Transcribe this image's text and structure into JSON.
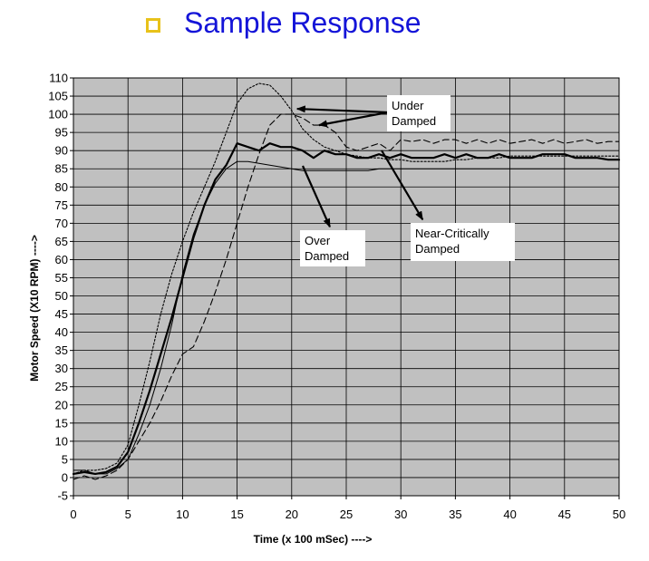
{
  "slide": {
    "title": "Sample Response",
    "bullet_icon": "hollow-square-bullet-icon",
    "bullet_color": "#E8C21A",
    "title_color": "#1414D8"
  },
  "chart_data": {
    "type": "line",
    "title": "",
    "xlabel": "Time (x 100 mSec) ---->",
    "ylabel": "Motor Speed (X10 RPM) ---->",
    "xlim": [
      0,
      50
    ],
    "ylim": [
      -5,
      110
    ],
    "xticks": [
      "0",
      "5",
      "10",
      "15",
      "20",
      "25",
      "30",
      "35",
      "40",
      "45",
      "50"
    ],
    "yticks": [
      "-5",
      "0",
      "5",
      "10",
      "15",
      "20",
      "25",
      "30",
      "35",
      "40",
      "45",
      "50",
      "55",
      "60",
      "65",
      "70",
      "75",
      "80",
      "85",
      "90",
      "95",
      "100",
      "105",
      "110"
    ],
    "grid": true,
    "plot_background": "#C0C0C0",
    "series": [
      {
        "name": "Under Damped",
        "style": "dotted",
        "x": [
          0,
          1,
          2,
          3,
          4,
          5,
          6,
          7,
          8,
          9,
          10,
          11,
          12,
          13,
          14,
          15,
          16,
          17,
          18,
          19,
          20,
          21,
          22,
          23,
          24,
          25,
          26,
          27,
          28,
          29,
          30,
          31,
          32,
          33,
          34,
          35,
          36,
          37,
          38,
          39,
          40,
          41,
          42,
          43,
          44,
          45,
          46,
          47,
          48,
          49,
          50
        ],
        "y": [
          1,
          2,
          2,
          2.5,
          4,
          9,
          20,
          32,
          45,
          56,
          65,
          73,
          80,
          87,
          95,
          103,
          107,
          108.5,
          108,
          105,
          101,
          96,
          93,
          91,
          90,
          89,
          88.5,
          88,
          88,
          87.5,
          87.5,
          87,
          87,
          87,
          87,
          87.5,
          87.5,
          88,
          88,
          88,
          88.5,
          88.5,
          88.5,
          88.5,
          88.5,
          88.5,
          88.5,
          88.5,
          88.5,
          88.5,
          88.5
        ]
      },
      {
        "name": "Under Damped",
        "style": "dashed",
        "x": [
          0,
          1,
          2,
          3,
          4,
          5,
          6,
          7,
          8,
          9,
          10,
          11,
          12,
          13,
          14,
          15,
          16,
          17,
          18,
          19,
          20,
          21,
          22,
          23,
          24,
          25,
          26,
          27,
          28,
          29,
          30,
          31,
          32,
          33,
          34,
          35,
          36,
          37,
          38,
          39,
          40,
          41,
          42,
          43,
          44,
          45,
          46,
          47,
          48,
          49,
          50
        ],
        "y": [
          -0.5,
          0.5,
          -0.5,
          0.5,
          2,
          5,
          10,
          15,
          21,
          28,
          34,
          36,
          43,
          51,
          60,
          70,
          80,
          89,
          97,
          100,
          100,
          99,
          97,
          97,
          95,
          91,
          90,
          91,
          92,
          90,
          93,
          92.5,
          93,
          92,
          93,
          93,
          92,
          93,
          92,
          93,
          92,
          92.5,
          93,
          92,
          93,
          92,
          92.5,
          93,
          92,
          92.5,
          92.5
        ]
      },
      {
        "name": "Near-Critically Damped",
        "style": "solid-thick",
        "x": [
          0,
          1,
          2,
          3,
          4,
          5,
          6,
          7,
          8,
          9,
          10,
          11,
          12,
          13,
          14,
          15,
          16,
          17,
          18,
          19,
          20,
          21,
          22,
          23,
          24,
          25,
          26,
          27,
          28,
          29,
          30,
          31,
          32,
          33,
          34,
          35,
          36,
          37,
          38,
          39,
          40,
          41,
          42,
          43,
          44,
          45,
          46,
          47,
          48,
          49,
          50
        ],
        "y": [
          1,
          1.5,
          1,
          1.5,
          3,
          7,
          15,
          24,
          34,
          44,
          55,
          66,
          75,
          82,
          86,
          92,
          91,
          90,
          92,
          91,
          91,
          90,
          88,
          90,
          89,
          89,
          88,
          88,
          89,
          88,
          89,
          88,
          88,
          88,
          89,
          88,
          89,
          88,
          88,
          89,
          88,
          88,
          88,
          89,
          89,
          89,
          88,
          88,
          88,
          87.5,
          87.5
        ]
      },
      {
        "name": "Over Damped",
        "style": "solid-thin",
        "x": [
          0,
          1,
          2,
          3,
          4,
          5,
          6,
          7,
          8,
          9,
          10,
          11,
          12,
          13,
          14,
          15,
          16,
          17,
          18,
          19,
          20,
          21,
          22,
          23,
          24,
          25,
          26,
          27,
          28,
          29,
          30,
          31,
          32,
          33,
          34,
          35,
          36,
          37,
          38,
          39,
          40,
          41,
          42,
          43,
          44,
          45,
          46,
          47,
          48,
          49,
          50
        ],
        "y": [
          2,
          2,
          1,
          1,
          2.5,
          5,
          12,
          20,
          30,
          42,
          56,
          67,
          75,
          81,
          85,
          87,
          87,
          86.5,
          86,
          85.5,
          85,
          84.5,
          84.5,
          84.5,
          84.5,
          84.5,
          84.5,
          84.5,
          85,
          85,
          85,
          85,
          85,
          85,
          85,
          85,
          85,
          85,
          85,
          85,
          85,
          85,
          85,
          85,
          85,
          85,
          85,
          85,
          85,
          85,
          85
        ]
      }
    ],
    "annotations": [
      {
        "text_lines": [
          "Under",
          "Damped"
        ],
        "arrows_to": [
          [
            20.5,
            101.5
          ],
          [
            22.5,
            97
          ]
        ]
      },
      {
        "text_lines": [
          "Over",
          "Damped"
        ],
        "arrows_to": [
          [
            23.5,
            69
          ]
        ]
      },
      {
        "text_lines": [
          "Near-Critically",
          "Damped"
        ],
        "arrows_to": [
          [
            32,
            71
          ]
        ]
      }
    ]
  }
}
